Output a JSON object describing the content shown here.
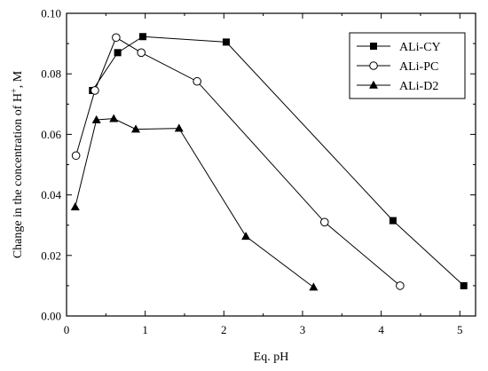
{
  "chart_data": {
    "type": "line",
    "xlabel": "Eq. pH",
    "ylabel_prefix": "Change in the concentration of H",
    "ylabel_sup": "+",
    "ylabel_suffix": ", M",
    "xlim": [
      0,
      5.2
    ],
    "ylim": [
      0,
      0.1
    ],
    "xticks": [
      0,
      1,
      2,
      3,
      4,
      5
    ],
    "yticks": [
      0.0,
      0.02,
      0.04,
      0.06,
      0.08,
      0.1
    ],
    "ytick_labels": [
      "0.00",
      "0.02",
      "0.04",
      "0.06",
      "0.08",
      "0.10"
    ],
    "legend_position": "top-right",
    "series": [
      {
        "name": "ALi-CY",
        "marker": "square-filled",
        "x": [
          0.33,
          0.65,
          0.97,
          2.03,
          4.15,
          5.05
        ],
        "y": [
          0.0745,
          0.087,
          0.0923,
          0.0905,
          0.0315,
          0.01
        ]
      },
      {
        "name": "ALi-PC",
        "marker": "circle-open",
        "x": [
          0.12,
          0.36,
          0.63,
          0.95,
          1.66,
          3.28,
          4.24
        ],
        "y": [
          0.053,
          0.0745,
          0.092,
          0.087,
          0.0775,
          0.031,
          0.01
        ]
      },
      {
        "name": "ALi-D2",
        "marker": "triangle-filled",
        "x": [
          0.11,
          0.38,
          0.6,
          0.88,
          1.43,
          2.28,
          3.14
        ],
        "y": [
          0.036,
          0.0648,
          0.0652,
          0.0617,
          0.062,
          0.0263,
          0.0095
        ]
      }
    ]
  }
}
